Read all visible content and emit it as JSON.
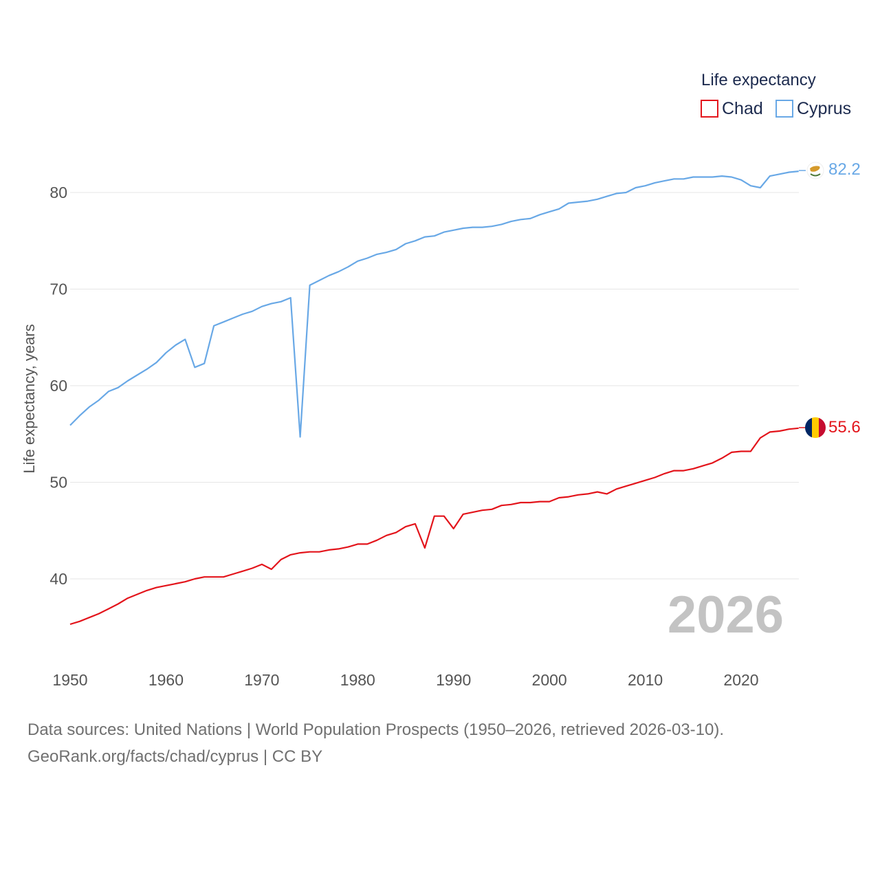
{
  "chart_data": {
    "type": "line",
    "title": "",
    "legend_title": "Life expectancy",
    "ylabel": "Life expectancy, years",
    "xlabel": "",
    "xlim": [
      1950,
      2026
    ],
    "ylim": [
      33.5,
      86
    ],
    "x_ticks": [
      "1950",
      "1960",
      "1970",
      "1980",
      "1990",
      "2000",
      "2010",
      "2020"
    ],
    "y_ticks": [
      "40",
      "50",
      "60",
      "70",
      "80"
    ],
    "year_label": "2026",
    "legend_position": "top-right",
    "series": [
      {
        "name": "Chad",
        "color": "#e3141b",
        "end_label": "55.6",
        "points": [
          [
            1950,
            35.3
          ],
          [
            1951,
            35.6
          ],
          [
            1952,
            36.0
          ],
          [
            1953,
            36.4
          ],
          [
            1954,
            36.9
          ],
          [
            1955,
            37.4
          ],
          [
            1956,
            38.0
          ],
          [
            1957,
            38.4
          ],
          [
            1958,
            38.8
          ],
          [
            1959,
            39.1
          ],
          [
            1960,
            39.3
          ],
          [
            1961,
            39.5
          ],
          [
            1962,
            39.7
          ],
          [
            1963,
            40.0
          ],
          [
            1964,
            40.2
          ],
          [
            1965,
            40.2
          ],
          [
            1966,
            40.2
          ],
          [
            1967,
            40.5
          ],
          [
            1968,
            40.8
          ],
          [
            1969,
            41.1
          ],
          [
            1970,
            41.5
          ],
          [
            1971,
            41.0
          ],
          [
            1972,
            42.0
          ],
          [
            1973,
            42.5
          ],
          [
            1974,
            42.7
          ],
          [
            1975,
            42.8
          ],
          [
            1976,
            42.8
          ],
          [
            1977,
            43.0
          ],
          [
            1978,
            43.1
          ],
          [
            1979,
            43.3
          ],
          [
            1980,
            43.6
          ],
          [
            1981,
            43.6
          ],
          [
            1982,
            44.0
          ],
          [
            1983,
            44.5
          ],
          [
            1984,
            44.8
          ],
          [
            1985,
            45.4
          ],
          [
            1986,
            45.7
          ],
          [
            1987,
            43.2
          ],
          [
            1988,
            46.5
          ],
          [
            1989,
            46.5
          ],
          [
            1990,
            45.2
          ],
          [
            1991,
            46.7
          ],
          [
            1992,
            46.9
          ],
          [
            1993,
            47.1
          ],
          [
            1994,
            47.2
          ],
          [
            1995,
            47.6
          ],
          [
            1996,
            47.7
          ],
          [
            1997,
            47.9
          ],
          [
            1998,
            47.9
          ],
          [
            1999,
            48.0
          ],
          [
            2000,
            48.0
          ],
          [
            2001,
            48.4
          ],
          [
            2002,
            48.5
          ],
          [
            2003,
            48.7
          ],
          [
            2004,
            48.8
          ],
          [
            2005,
            49.0
          ],
          [
            2006,
            48.8
          ],
          [
            2007,
            49.3
          ],
          [
            2008,
            49.6
          ],
          [
            2009,
            49.9
          ],
          [
            2010,
            50.2
          ],
          [
            2011,
            50.5
          ],
          [
            2012,
            50.9
          ],
          [
            2013,
            51.2
          ],
          [
            2014,
            51.2
          ],
          [
            2015,
            51.4
          ],
          [
            2016,
            51.7
          ],
          [
            2017,
            52.0
          ],
          [
            2018,
            52.5
          ],
          [
            2019,
            53.1
          ],
          [
            2020,
            53.2
          ],
          [
            2021,
            53.2
          ],
          [
            2022,
            54.6
          ],
          [
            2023,
            55.2
          ],
          [
            2024,
            55.3
          ],
          [
            2025,
            55.5
          ],
          [
            2026,
            55.6
          ]
        ]
      },
      {
        "name": "Cyprus",
        "color": "#68a8e6",
        "end_label": "82.2",
        "points": [
          [
            1950,
            55.9
          ],
          [
            1951,
            56.9
          ],
          [
            1952,
            57.8
          ],
          [
            1953,
            58.5
          ],
          [
            1954,
            59.4
          ],
          [
            1955,
            59.8
          ],
          [
            1956,
            60.5
          ],
          [
            1957,
            61.1
          ],
          [
            1958,
            61.7
          ],
          [
            1959,
            62.4
          ],
          [
            1960,
            63.4
          ],
          [
            1961,
            64.2
          ],
          [
            1962,
            64.8
          ],
          [
            1963,
            61.9
          ],
          [
            1964,
            62.3
          ],
          [
            1965,
            66.2
          ],
          [
            1966,
            66.6
          ],
          [
            1967,
            67.0
          ],
          [
            1968,
            67.4
          ],
          [
            1969,
            67.7
          ],
          [
            1970,
            68.2
          ],
          [
            1971,
            68.5
          ],
          [
            1972,
            68.7
          ],
          [
            1973,
            69.1
          ],
          [
            1974,
            54.7
          ],
          [
            1975,
            70.4
          ],
          [
            1976,
            70.9
          ],
          [
            1977,
            71.4
          ],
          [
            1978,
            71.8
          ],
          [
            1979,
            72.3
          ],
          [
            1980,
            72.9
          ],
          [
            1981,
            73.2
          ],
          [
            1982,
            73.6
          ],
          [
            1983,
            73.8
          ],
          [
            1984,
            74.1
          ],
          [
            1985,
            74.7
          ],
          [
            1986,
            75.0
          ],
          [
            1987,
            75.4
          ],
          [
            1988,
            75.5
          ],
          [
            1989,
            75.9
          ],
          [
            1990,
            76.1
          ],
          [
            1991,
            76.3
          ],
          [
            1992,
            76.4
          ],
          [
            1993,
            76.4
          ],
          [
            1994,
            76.5
          ],
          [
            1995,
            76.7
          ],
          [
            1996,
            77.0
          ],
          [
            1997,
            77.2
          ],
          [
            1998,
            77.3
          ],
          [
            1999,
            77.7
          ],
          [
            2000,
            78.0
          ],
          [
            2001,
            78.3
          ],
          [
            2002,
            78.9
          ],
          [
            2003,
            79.0
          ],
          [
            2004,
            79.1
          ],
          [
            2005,
            79.3
          ],
          [
            2006,
            79.6
          ],
          [
            2007,
            79.9
          ],
          [
            2008,
            80.0
          ],
          [
            2009,
            80.5
          ],
          [
            2010,
            80.7
          ],
          [
            2011,
            81.0
          ],
          [
            2012,
            81.2
          ],
          [
            2013,
            81.4
          ],
          [
            2014,
            81.4
          ],
          [
            2015,
            81.6
          ],
          [
            2016,
            81.6
          ],
          [
            2017,
            81.6
          ],
          [
            2018,
            81.7
          ],
          [
            2019,
            81.6
          ],
          [
            2020,
            81.3
          ],
          [
            2021,
            80.7
          ],
          [
            2022,
            80.5
          ],
          [
            2023,
            81.7
          ],
          [
            2024,
            81.9
          ],
          [
            2025,
            82.1
          ],
          [
            2026,
            82.2
          ]
        ]
      }
    ]
  },
  "source": {
    "line1": "Data sources: United Nations | World Population Prospects (1950–2026, retrieved 2026-03-10).",
    "line2": "GeoRank.org/facts/chad/cyprus | CC BY"
  }
}
